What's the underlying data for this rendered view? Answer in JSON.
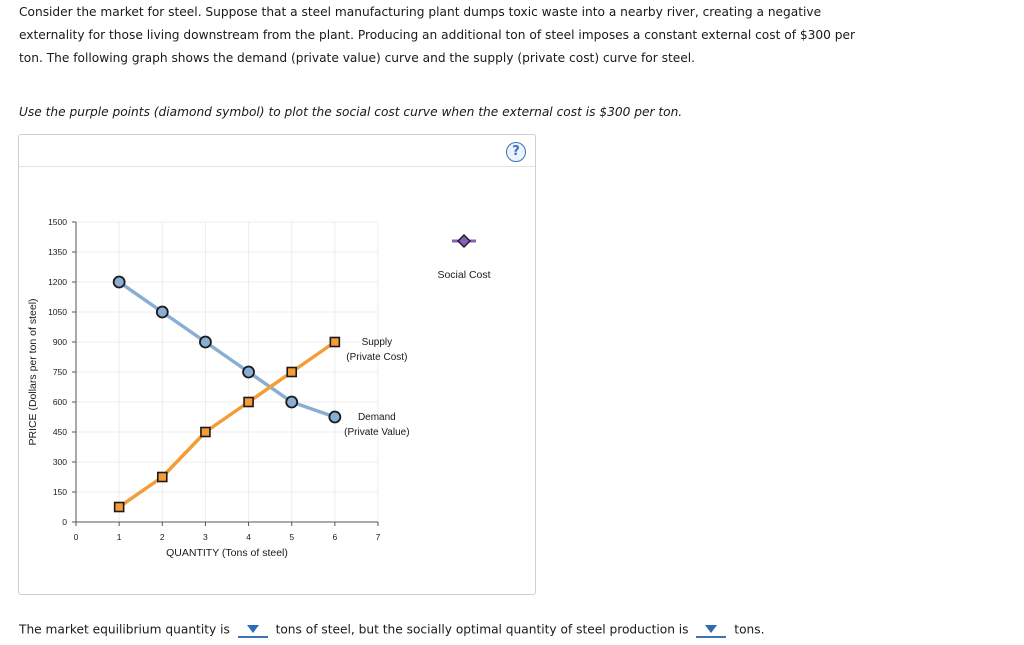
{
  "intro_text": "Consider the market for steel. Suppose that a steel manufacturing plant dumps toxic waste into a nearby river, creating a negative externality for those living downstream from the plant. Producing an additional ton of steel imposes a constant external cost of $300 per ton. The following graph shows the demand (private value) curve and the supply (private cost) curve for steel.",
  "instruction": "Use the purple points (diamond symbol) to plot the social cost curve when the external cost is $300 per ton.",
  "help_label": "?",
  "chart_data": {
    "type": "line",
    "xlabel": "QUANTITY (Tons of steel)",
    "ylabel": "PRICE (Dollars per ton of steel)",
    "xlim": [
      0,
      7
    ],
    "ylim": [
      0,
      1500
    ],
    "xticks": [
      "0",
      "1",
      "2",
      "3",
      "4",
      "5",
      "6",
      "7"
    ],
    "yticks": [
      "0",
      "150",
      "300",
      "450",
      "600",
      "750",
      "900",
      "1050",
      "1200",
      "1350",
      "1500"
    ],
    "series": [
      {
        "name": "Demand",
        "label_lines": [
          "Demand",
          "(Private Value)"
        ],
        "color": "#8aaed3",
        "marker": "circle",
        "x": [
          1,
          2,
          3,
          4,
          5,
          6
        ],
        "y": [
          1200,
          1050,
          900,
          750,
          600,
          525
        ]
      },
      {
        "name": "Supply",
        "label_lines": [
          "Supply",
          "(Private Cost)"
        ],
        "color": "#f39c38",
        "marker": "square",
        "x": [
          1,
          2,
          3,
          4,
          5,
          6
        ],
        "y": [
          75,
          225,
          450,
          600,
          750,
          900
        ]
      }
    ],
    "tool": {
      "name": "Social Cost",
      "color": "#8b5fb7",
      "marker": "diamond"
    }
  },
  "question": {
    "part1": "The market equilibrium quantity is",
    "part2": "tons of steel, but the socially optimal quantity of steel production is",
    "part3": "tons."
  }
}
